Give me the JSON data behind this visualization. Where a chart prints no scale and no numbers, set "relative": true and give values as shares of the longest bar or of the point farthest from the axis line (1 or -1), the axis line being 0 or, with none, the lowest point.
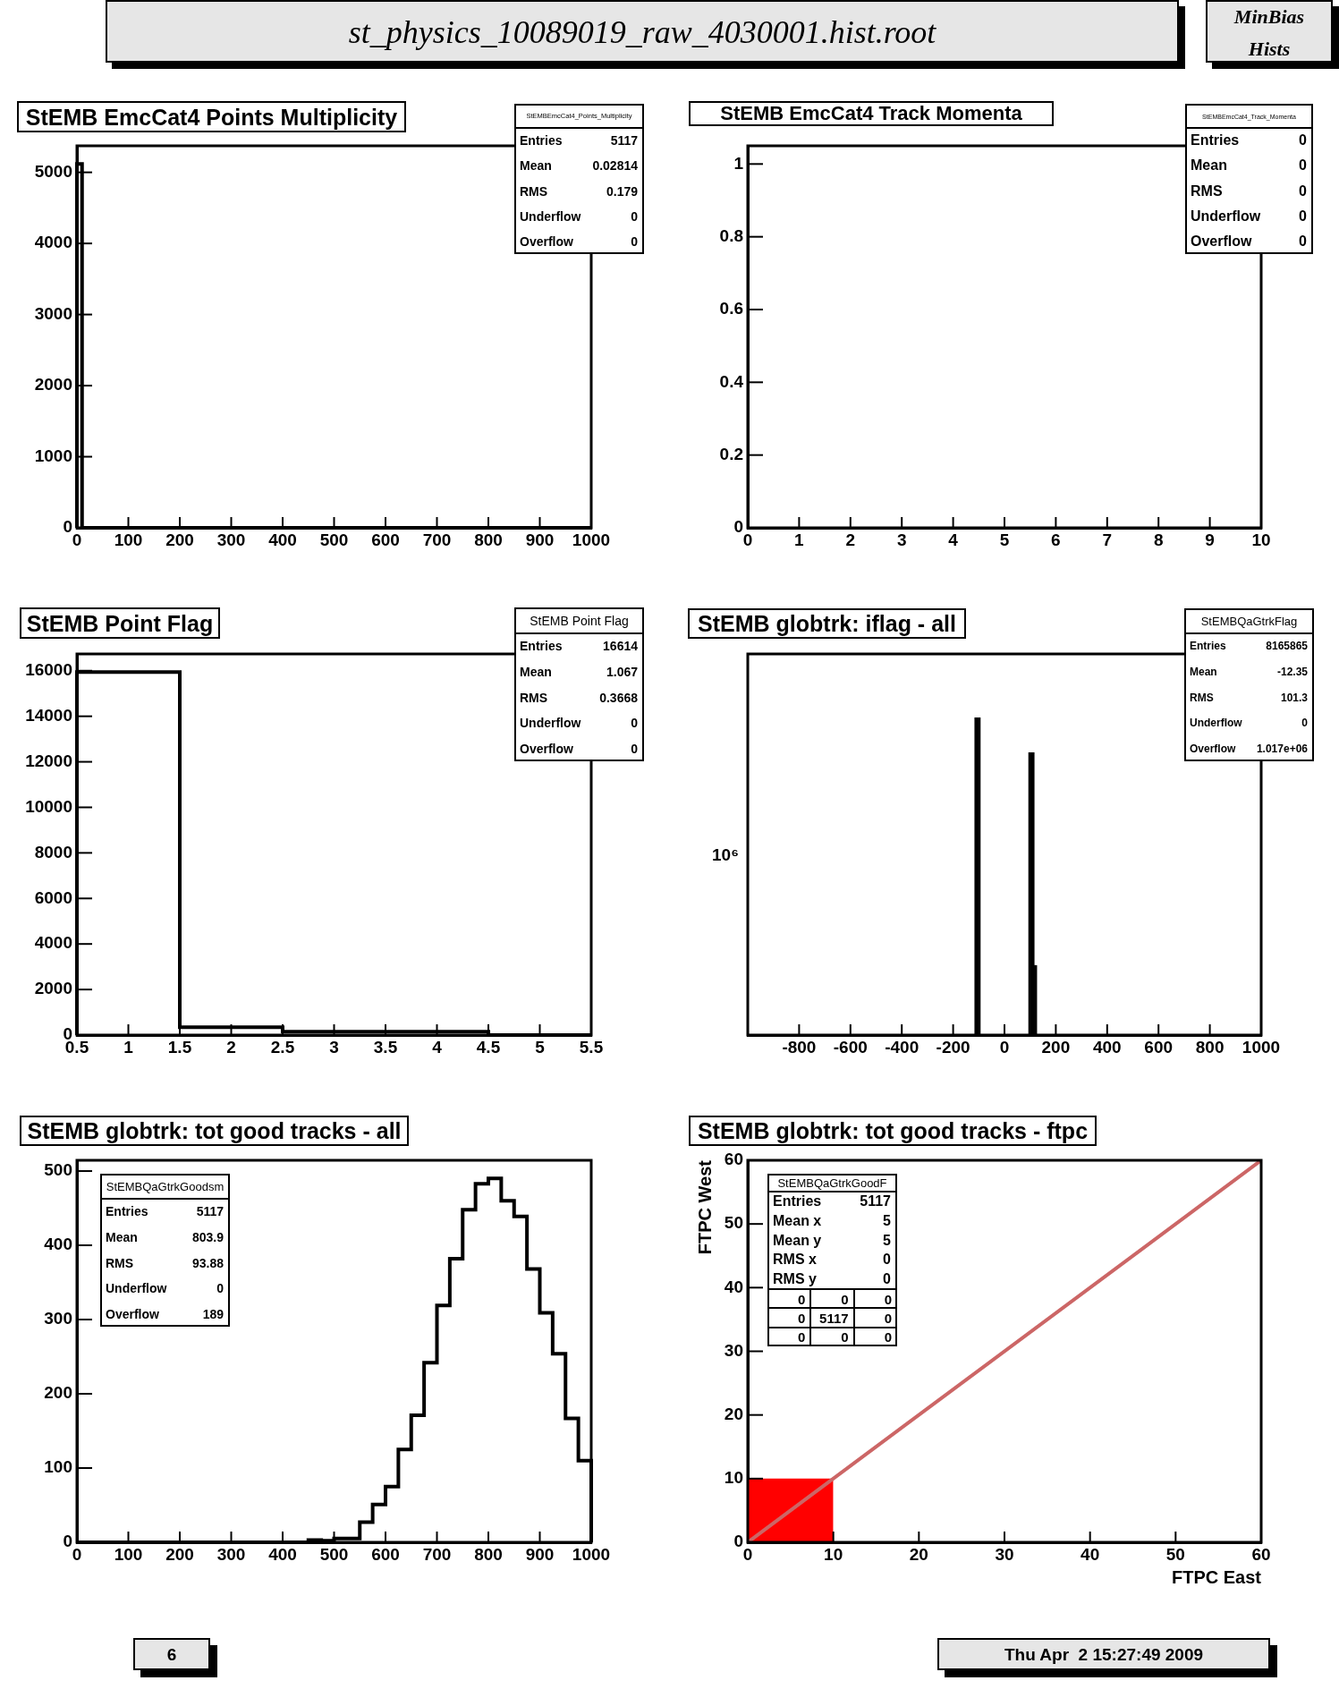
{
  "chart_data": [
    {
      "type": "other",
      "title": "st_physics_10089019_raw_4030001.hist.root",
      "annotations": [
        "MinBias",
        "Hists",
        "6",
        "Thu Apr  2 15:27:49 2009"
      ]
    },
    {
      "type": "histogram",
      "title": "StEMB EmcCat4 Points Multiplicity",
      "bins": [
        0,
        10,
        1000
      ],
      "values": [
        5117,
        0
      ],
      "color": "#000000",
      "xlim": [
        0,
        1000
      ],
      "ylim": [
        0,
        5373
      ],
      "xticks": [
        0,
        100,
        200,
        300,
        400,
        500,
        600,
        700,
        800,
        900,
        1000
      ],
      "yticks": [
        0,
        1000,
        2000,
        3000,
        4000,
        5000
      ],
      "annotations": [
        "StEMBEmcCat4_Points_Multiplicity",
        "Entries",
        "5117",
        "Mean",
        "0.02814",
        "RMS",
        "0.179",
        "Underflow",
        "0",
        "Overflow",
        "0"
      ]
    },
    {
      "type": "histogram",
      "title": "StEMB EmcCat4 Track Momenta",
      "xlim": [
        0,
        10
      ],
      "ylim": [
        0,
        1.05
      ],
      "xticks": [
        0,
        1,
        2,
        3,
        4,
        5,
        6,
        7,
        8,
        9,
        10
      ],
      "yticks": [
        0,
        0.2,
        0.4,
        0.6,
        0.8,
        1
      ],
      "annotations": [
        "StEMBEmcCat4_Track_Momenta",
        "Entries",
        "0",
        "Mean",
        "0",
        "RMS",
        "0",
        "Underflow",
        "0",
        "Overflow",
        "0"
      ]
    },
    {
      "type": "histogram",
      "title": "StEMB Point Flag",
      "bins": [
        0.5,
        1.5,
        2.5,
        3.5,
        4.5,
        5.5
      ],
      "values": [
        15940,
        340,
        150,
        150,
        0
      ],
      "color": "#000000",
      "xlim": [
        0.5,
        5.5
      ],
      "ylim": [
        0,
        16737
      ],
      "xticks": [
        0.5,
        1,
        1.5,
        2,
        2.5,
        3,
        3.5,
        4,
        4.5,
        5,
        5.5
      ],
      "yticks": [
        0,
        2000,
        4000,
        6000,
        8000,
        10000,
        12000,
        14000,
        16000
      ],
      "annotations": [
        "StEMB Point Flag",
        "Entries",
        "16614",
        "Mean",
        "1.067",
        "RMS",
        "0.3668",
        "Underflow",
        "0",
        "Overflow",
        "0"
      ]
    },
    {
      "type": "bar",
      "title": "StEMB globtrk: iflag - all",
      "relative": true,
      "x": [
        -105,
        105,
        115
      ],
      "values": [
        1,
        0.89,
        0.22
      ],
      "color": "#000000",
      "xlim": [
        -1000,
        1000
      ],
      "xticks": [
        -800,
        -600,
        -400,
        -200,
        0,
        200,
        400,
        600,
        800,
        1000
      ],
      "annotations": [
        "StEMBQaGtrkFlag",
        "Entries",
        "8165865",
        "Mean",
        "-12.35",
        "RMS",
        "101.3",
        "Underflow",
        "0",
        "Overflow",
        "1.017e+06",
        "10⁶"
      ]
    },
    {
      "type": "histogram",
      "title": "StEMB globtrk: tot good tracks - all",
      "bins": [
        0,
        25,
        50,
        75,
        100,
        125,
        150,
        175,
        200,
        225,
        250,
        275,
        300,
        325,
        350,
        375,
        400,
        425,
        450,
        475,
        500,
        525,
        550,
        575,
        600,
        625,
        650,
        675,
        700,
        725,
        750,
        775,
        800,
        825,
        850,
        875,
        900,
        925,
        950,
        975,
        1000
      ],
      "values": [
        0,
        0,
        0,
        0,
        0,
        0,
        0,
        0,
        0,
        0,
        0,
        0,
        0,
        0,
        0,
        0,
        0,
        0,
        3,
        2,
        5,
        5,
        27,
        51,
        75,
        125,
        171,
        242,
        319,
        382,
        448,
        483,
        490,
        460,
        439,
        368,
        309,
        254,
        167,
        110
      ],
      "color": "#000000",
      "xlim": [
        0,
        1000
      ],
      "ylim": [
        0,
        514.5
      ],
      "xticks": [
        0,
        100,
        200,
        300,
        400,
        500,
        600,
        700,
        800,
        900,
        1000
      ],
      "yticks": [
        0,
        100,
        200,
        300,
        400,
        500
      ],
      "annotations": [
        "StEMBQaGtrkGoodsm",
        "Entries",
        "5117",
        "Mean",
        "803.9",
        "RMS",
        "93.88",
        "Underflow",
        "0",
        "Overflow",
        "189"
      ]
    },
    {
      "type": "area",
      "title": "StEMB globtrk: tot good tracks - ftpc",
      "xlabel": "FTPC East",
      "ylabel": "FTPC West",
      "xlim": [
        0,
        60
      ],
      "ylim": [
        0,
        60
      ],
      "xticks": [
        0,
        10,
        20,
        30,
        40,
        50,
        60
      ],
      "yticks": [
        0,
        10,
        20,
        30,
        40,
        50,
        60
      ],
      "series": [
        {
          "x": [
            0,
            10
          ],
          "values": [
            10,
            10
          ],
          "color": "#ff0000"
        },
        {
          "type": "line",
          "x": [
            0,
            60
          ],
          "values": [
            0,
            60
          ],
          "color": "#cc6666"
        }
      ],
      "annotations": [
        "StEMBQaGtrkGoodF",
        "Entries",
        "5117",
        "Mean x",
        "5",
        "Mean y",
        "5",
        "RMS x",
        "0",
        "RMS y",
        "0",
        "0",
        "0",
        "0",
        "0",
        "5117",
        "0",
        "0",
        "0",
        "0"
      ]
    }
  ]
}
